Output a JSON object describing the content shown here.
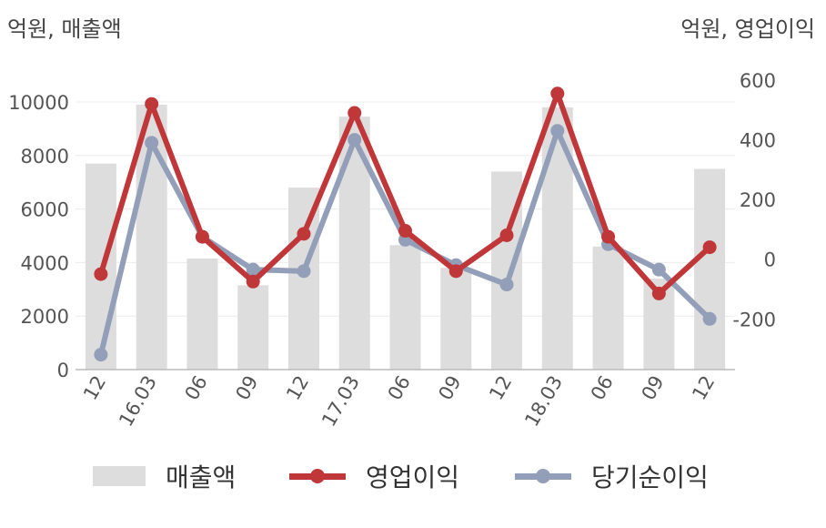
{
  "chart_data": {
    "type": "bar+line",
    "left_unit": "억원, 매출액",
    "right_unit": "억원, 영업이익",
    "categories": [
      "12",
      "16.03",
      "06",
      "09",
      "12",
      "17.03",
      "06",
      "09",
      "12",
      "18.03",
      "06",
      "09",
      "12"
    ],
    "left_axis": {
      "ticks": [
        "0",
        "2000",
        "4000",
        "6000",
        "8000",
        "10000"
      ],
      "range": [
        0,
        10000
      ]
    },
    "right_axis": {
      "ticks": [
        "-200",
        "0",
        "200",
        "400",
        "600"
      ],
      "range": [
        -370,
        600
      ]
    },
    "series": [
      {
        "name": "매출액",
        "type": "bar",
        "axis": "left",
        "color": "#dddddd",
        "values": [
          7700,
          9900,
          4150,
          3150,
          6800,
          9450,
          4650,
          3800,
          7400,
          9800,
          4600,
          3400,
          7500
        ]
      },
      {
        "name": "영업이익",
        "type": "line",
        "axis": "right",
        "color": "#c0373a",
        "values": [
          -50,
          520,
          75,
          -75,
          85,
          490,
          95,
          -40,
          80,
          555,
          75,
          -115,
          40
        ]
      },
      {
        "name": "당기순이익",
        "type": "line",
        "axis": "right",
        "color": "#939eb8",
        "values": [
          -320,
          390,
          75,
          -35,
          -40,
          400,
          65,
          -20,
          -85,
          430,
          50,
          -35,
          -200
        ]
      }
    ],
    "grid": true,
    "legend_position": "bottom"
  },
  "legend": {
    "bar": "매출액",
    "line1": "영업이익",
    "line2": "당기순이익"
  }
}
